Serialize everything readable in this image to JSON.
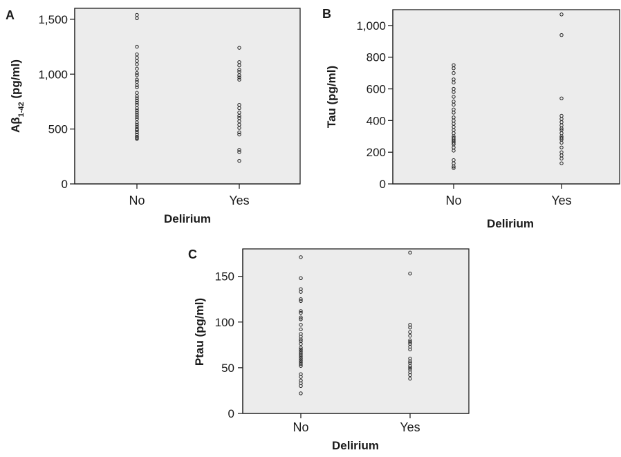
{
  "chart_data": [
    {
      "type": "scatter",
      "panel_label": "A",
      "xlabel": "Delirium",
      "ylabel": "Aβ1-42 (pg/ml)",
      "ylabel_parts": {
        "main": "Aβ",
        "sub": "1-42",
        "unit": " (pg/ml)"
      },
      "categories": [
        "No",
        "Yes"
      ],
      "ylim": [
        0,
        1600
      ],
      "yticks": [
        0,
        500,
        1000,
        1500
      ],
      "ytick_labels": [
        "0",
        "500",
        "1,000",
        "1,500"
      ],
      "grid": false,
      "series": [
        {
          "category": "No",
          "values": [
            1540,
            1510,
            1250,
            1180,
            1150,
            1120,
            1090,
            1050,
            1010,
            990,
            950,
            930,
            900,
            880,
            830,
            800,
            780,
            760,
            740,
            720,
            690,
            670,
            650,
            630,
            610,
            590,
            560,
            540,
            520,
            500,
            490,
            470,
            450,
            430,
            420,
            410
          ]
        },
        {
          "category": "Yes",
          "values": [
            1240,
            1110,
            1080,
            1040,
            1020,
            990,
            970,
            950,
            720,
            690,
            650,
            620,
            600,
            570,
            540,
            510,
            470,
            450,
            310,
            290,
            210
          ]
        }
      ]
    },
    {
      "type": "scatter",
      "panel_label": "B",
      "xlabel": "Delirium",
      "ylabel": "Tau (pg/ml)",
      "categories": [
        "No",
        "Yes"
      ],
      "ylim": [
        0,
        1100
      ],
      "yticks": [
        0,
        200,
        400,
        600,
        800,
        1000
      ],
      "ytick_labels": [
        "0",
        "200",
        "400",
        "600",
        "800",
        "1,000"
      ],
      "grid": false,
      "series": [
        {
          "category": "No",
          "values": [
            750,
            730,
            700,
            660,
            640,
            600,
            580,
            550,
            520,
            500,
            470,
            450,
            420,
            400,
            380,
            360,
            340,
            320,
            300,
            290,
            280,
            270,
            260,
            250,
            230,
            210,
            150,
            130,
            110,
            100
          ]
        },
        {
          "category": "Yes",
          "values": [
            1070,
            940,
            540,
            430,
            410,
            390,
            370,
            350,
            340,
            320,
            300,
            290,
            280,
            260,
            230,
            200,
            180,
            160,
            130
          ]
        }
      ]
    },
    {
      "type": "scatter",
      "panel_label": "C",
      "xlabel": "Delirium",
      "ylabel": "Ptau (pg/ml)",
      "categories": [
        "No",
        "Yes"
      ],
      "ylim": [
        0,
        180
      ],
      "yticks": [
        0,
        50,
        100,
        150
      ],
      "ytick_labels": [
        "0",
        "50",
        "100",
        "150"
      ],
      "grid": false,
      "series": [
        {
          "category": "No",
          "values": [
            171,
            148,
            136,
            133,
            125,
            123,
            112,
            110,
            105,
            103,
            97,
            92,
            87,
            84,
            81,
            79,
            76,
            72,
            70,
            68,
            66,
            64,
            62,
            60,
            58,
            56,
            54,
            52,
            43,
            40,
            36,
            33,
            30,
            22
          ]
        },
        {
          "category": "Yes",
          "values": [
            176,
            153,
            97,
            94,
            89,
            85,
            80,
            78,
            76,
            73,
            70,
            60,
            57,
            55,
            52,
            50,
            48,
            45,
            42,
            38
          ]
        }
      ]
    }
  ]
}
